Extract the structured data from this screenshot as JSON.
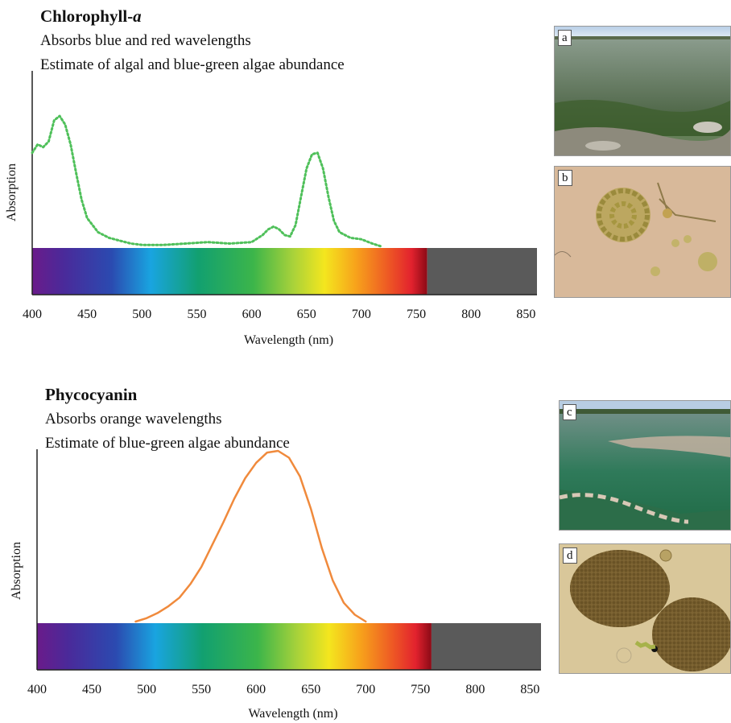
{
  "charts": [
    {
      "title_main": "Chlorophyll-",
      "title_italic": "a",
      "subtitle1": "Absorbs blue and red wavelengths",
      "subtitle2": "Estimate of algal and blue-green algae abundance",
      "ylabel": "Absorption",
      "xlabel": "Wavelength  (nm)",
      "xticks": [
        "400",
        "450",
        "500",
        "550",
        "600",
        "650",
        "700",
        "750",
        "800",
        "850"
      ],
      "line_color": "#4fc05a",
      "line_style": "dotted"
    },
    {
      "title_main": "Phycocyanin",
      "title_italic": "",
      "subtitle1": "Absorbs orange wavelengths",
      "subtitle2": "Estimate of blue-green algae abundance",
      "ylabel": "Absorption",
      "xlabel": "Wavelength  (nm)",
      "xticks": [
        "400",
        "450",
        "500",
        "550",
        "600",
        "650",
        "700",
        "750",
        "800",
        "850"
      ],
      "line_color": "#f08a3c",
      "line_style": "solid"
    }
  ],
  "photos": [
    {
      "letter": "a"
    },
    {
      "letter": "b"
    },
    {
      "letter": "c"
    },
    {
      "letter": "d"
    }
  ],
  "chart_data": [
    {
      "type": "line",
      "title": "Chlorophyll-a",
      "xlabel": "Wavelength  (nm)",
      "ylabel": "Absorption",
      "xlim": [
        400,
        860
      ],
      "ylim": [
        0,
        1
      ],
      "x": [
        400,
        405,
        410,
        415,
        420,
        425,
        430,
        435,
        440,
        445,
        450,
        460,
        470,
        480,
        490,
        500,
        520,
        540,
        560,
        580,
        600,
        610,
        615,
        620,
        625,
        630,
        635,
        640,
        645,
        650,
        655,
        660,
        665,
        670,
        675,
        680,
        690,
        700,
        710,
        718
      ],
      "series": [
        {
          "values": [
            0.66,
            0.72,
            0.7,
            0.74,
            0.89,
            0.92,
            0.86,
            0.72,
            0.52,
            0.33,
            0.2,
            0.1,
            0.06,
            0.04,
            0.02,
            0.01,
            0.01,
            0.02,
            0.03,
            0.02,
            0.03,
            0.08,
            0.12,
            0.14,
            0.12,
            0.08,
            0.07,
            0.15,
            0.35,
            0.55,
            0.65,
            0.66,
            0.55,
            0.35,
            0.18,
            0.1,
            0.06,
            0.05,
            0.02,
            0.0
          ]
        }
      ],
      "spectrum_bar": {
        "start": 400,
        "end": 760,
        "gray_end": 860
      }
    },
    {
      "type": "line",
      "title": "Phycocyanin",
      "xlabel": "Wavelength  (nm)",
      "ylabel": "Absorption",
      "xlim": [
        400,
        860
      ],
      "ylim": [
        0,
        1
      ],
      "x": [
        490,
        500,
        510,
        520,
        530,
        540,
        550,
        560,
        570,
        580,
        590,
        600,
        610,
        620,
        630,
        640,
        650,
        660,
        670,
        680,
        690,
        700
      ],
      "series": [
        {
          "values": [
            0.0,
            0.02,
            0.05,
            0.09,
            0.14,
            0.22,
            0.32,
            0.45,
            0.58,
            0.72,
            0.84,
            0.93,
            0.99,
            1.0,
            0.96,
            0.85,
            0.66,
            0.43,
            0.24,
            0.11,
            0.04,
            0.0
          ]
        }
      ],
      "spectrum_bar": {
        "start": 400,
        "end": 760,
        "gray_end": 860
      }
    }
  ]
}
